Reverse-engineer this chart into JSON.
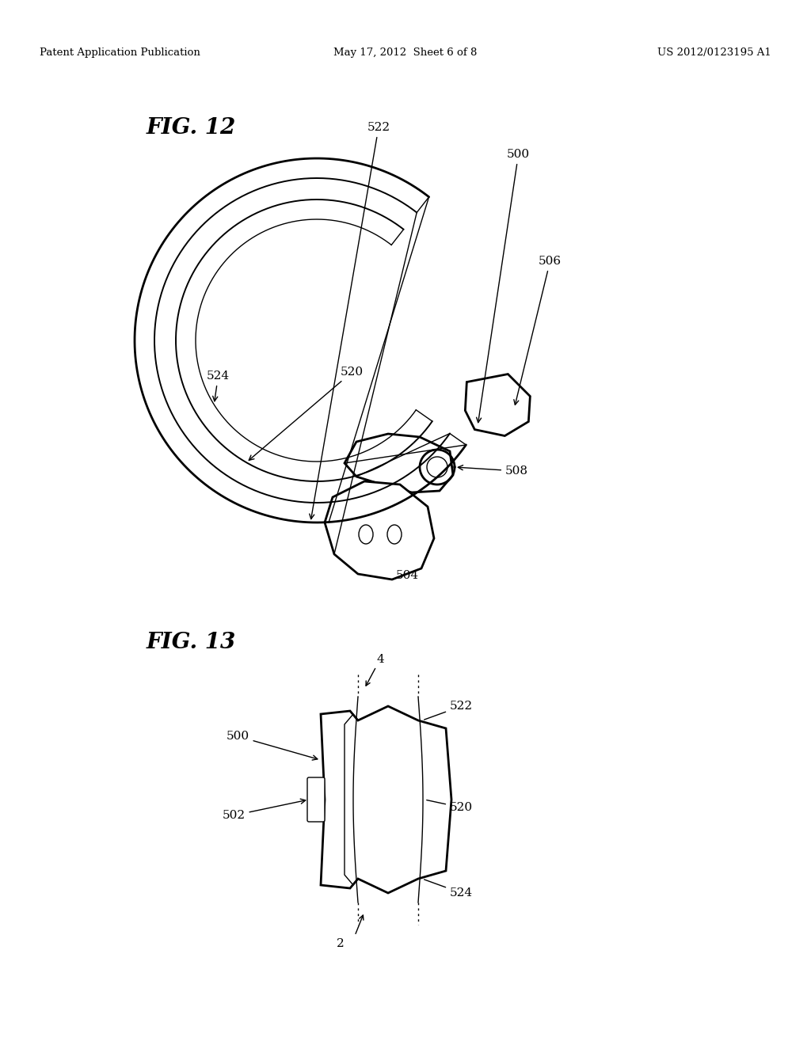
{
  "header_left": "Patent Application Publication",
  "header_center": "May 17, 2012  Sheet 6 of 8",
  "header_right": "US 2012/0123195 A1",
  "fig12_label": "FIG. 12",
  "fig13_label": "FIG. 13",
  "bg_color": "#ffffff",
  "line_color": "#000000"
}
